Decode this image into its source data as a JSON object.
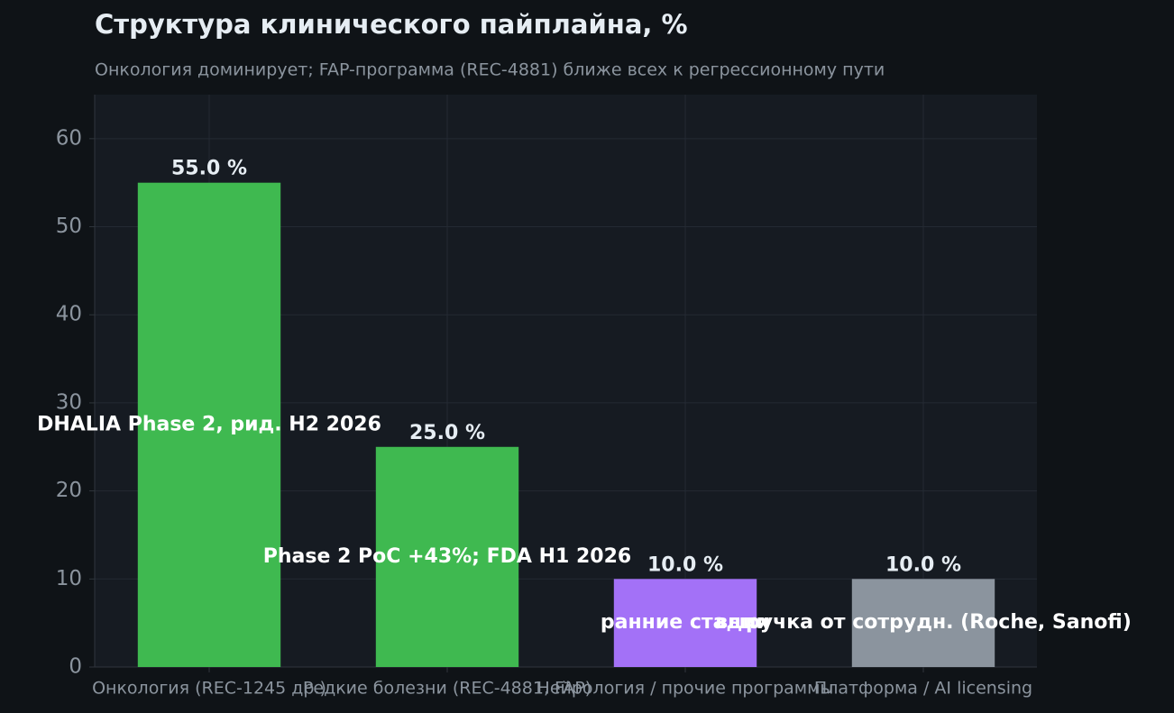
{
  "chart_data": {
    "type": "bar",
    "title": "Структура клинического пайплайна, %",
    "subtitle": "Онкология доминирует; FAP-программа (REC-4881) ближе всех к регрессионному пути",
    "categories": [
      "Онкология (REC-1245 др.)",
      "Редкие болезни (REC-4881, FAP)",
      "Нейрология / прочие программы",
      "Платформа / AI licensing"
    ],
    "values": [
      55,
      25,
      10,
      10
    ],
    "value_labels": [
      "55.0 %",
      "25.0 %",
      "10.0 %",
      "10.0 %"
    ],
    "colors": [
      "#3fb950",
      "#3fb950",
      "#a371f7",
      "#8b949e"
    ],
    "bar_notes": [
      "DHALIA Phase 2, рид. H2 2026",
      "Phase 2 PoC +43%; FDA H1 2026",
      "ранние стадии",
      "выручка от сотрудн. (Roche, Sanofi)"
    ],
    "ylim": [
      0,
      65
    ],
    "yticks": [
      0,
      10,
      20,
      30,
      40,
      50,
      60
    ],
    "grid": true
  }
}
